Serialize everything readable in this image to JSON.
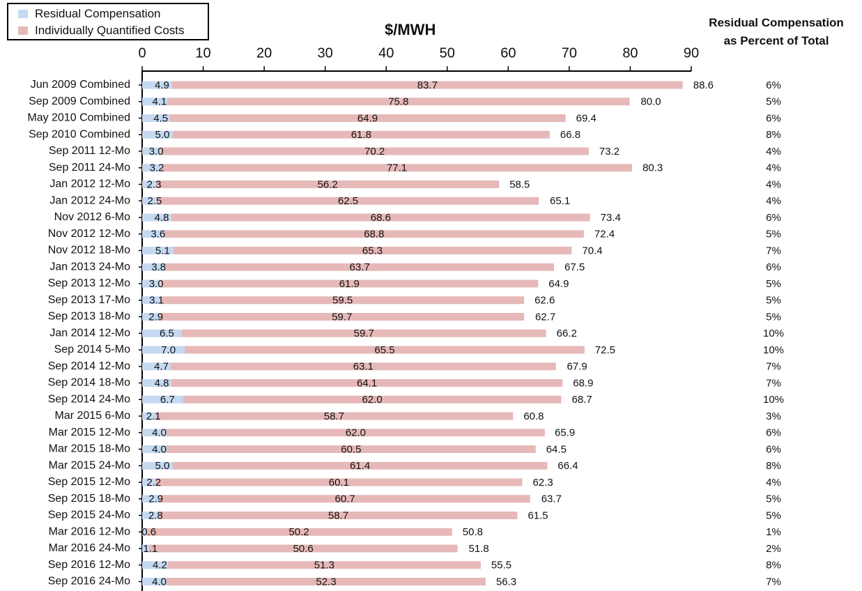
{
  "legend": {
    "residual": "Residual Compensation",
    "quantified": "Individually Quantified Costs"
  },
  "unit_title": "$/MWH",
  "pct_title": [
    "Residual Compensation",
    "as Percent of Total"
  ],
  "colors": {
    "residual": "#c5d9f1",
    "quantified": "#e6b9b8",
    "text": "#111111",
    "axis": "#000000"
  },
  "chart_data": {
    "type": "bar",
    "orientation": "horizontal",
    "stacked": true,
    "xlim": [
      0,
      90
    ],
    "xticks": [
      0,
      10,
      20,
      30,
      40,
      50,
      60,
      70,
      80,
      90
    ],
    "xlabel": "$/MWH",
    "legend_position": "top-left",
    "categories": [
      "Jun 2009 Combined",
      "Sep 2009 Combined",
      "May 2010 Combined",
      "Sep 2010 Combined",
      "Sep 2011 12-Mo",
      "Sep 2011 24-Mo",
      "Jan 2012 12-Mo",
      "Jan 2012 24-Mo",
      "Nov 2012 6-Mo",
      "Nov 2012 12-Mo",
      "Nov 2012 18-Mo",
      "Jan 2013 24-Mo",
      "Sep 2013 12-Mo",
      "Sep 2013 17-Mo",
      "Sep 2013 18-Mo",
      "Jan 2014 12-Mo",
      "Sep 2014 5-Mo",
      "Sep 2014 12-Mo",
      "Sep 2014 18-Mo",
      "Sep 2014 24-Mo",
      "Mar 2015 6-Mo",
      "Mar 2015 12-Mo",
      "Mar 2015 18-Mo",
      "Mar 2015 24-Mo",
      "Sep 2015 12-Mo",
      "Sep 2015 18-Mo",
      "Sep 2015 24-Mo",
      "Mar 2016 12-Mo",
      "Mar 2016 24-Mo",
      "Sep 2016 12-Mo",
      "Sep 2016 24-Mo"
    ],
    "series": [
      {
        "name": "Residual Compensation",
        "values": [
          4.9,
          4.1,
          4.5,
          5.0,
          3.0,
          3.2,
          2.3,
          2.5,
          4.8,
          3.6,
          5.1,
          3.8,
          3.0,
          3.1,
          2.9,
          6.5,
          7.0,
          4.7,
          4.8,
          6.7,
          2.1,
          4.0,
          4.0,
          5.0,
          2.2,
          2.9,
          2.8,
          0.6,
          1.1,
          4.2,
          4.0
        ]
      },
      {
        "name": "Individually Quantified Costs",
        "values": [
          83.7,
          75.8,
          64.9,
          61.8,
          70.2,
          77.1,
          56.2,
          62.5,
          68.6,
          68.8,
          65.3,
          63.7,
          61.9,
          59.5,
          59.7,
          59.7,
          65.5,
          63.1,
          64.1,
          62.0,
          58.7,
          62.0,
          60.5,
          61.4,
          60.1,
          60.7,
          58.7,
          50.2,
          50.6,
          51.3,
          52.3
        ]
      }
    ],
    "totals": [
      88.6,
      80.0,
      69.4,
      66.8,
      73.2,
      80.3,
      58.5,
      65.1,
      73.4,
      72.4,
      70.4,
      67.5,
      64.9,
      62.6,
      62.7,
      66.2,
      72.5,
      67.9,
      68.9,
      68.7,
      60.8,
      65.9,
      64.5,
      66.4,
      62.3,
      63.7,
      61.5,
      50.8,
      51.8,
      55.5,
      56.3
    ],
    "residual_percent": [
      "6%",
      "5%",
      "6%",
      "8%",
      "4%",
      "4%",
      "4%",
      "4%",
      "6%",
      "5%",
      "7%",
      "6%",
      "5%",
      "5%",
      "5%",
      "10%",
      "10%",
      "7%",
      "7%",
      "10%",
      "3%",
      "6%",
      "6%",
      "8%",
      "4%",
      "5%",
      "5%",
      "1%",
      "2%",
      "8%",
      "7%"
    ]
  }
}
